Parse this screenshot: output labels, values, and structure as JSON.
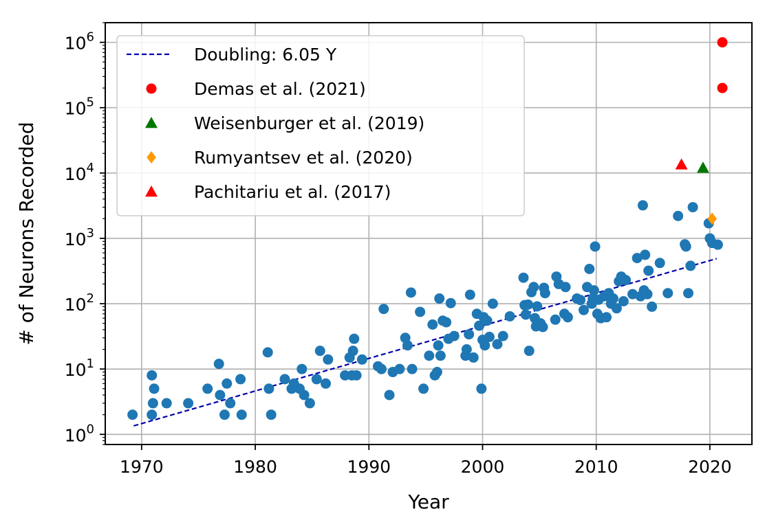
{
  "chart_data": {
    "type": "scatter",
    "title": "",
    "xlabel": "Year",
    "ylabel": "# of Neurons Recorded",
    "xlim": [
      1966.8,
      2023.7
    ],
    "ylim": [
      0.7,
      2000000
    ],
    "yscale": "log",
    "grid": true,
    "legend_position": "top-left",
    "x_ticks": [
      1970,
      1980,
      1990,
      2000,
      2010,
      2020
    ],
    "x_tick_labels": [
      "1970",
      "1980",
      "1990",
      "2000",
      "2010",
      "2020"
    ],
    "y_ticks": [
      1,
      10,
      100,
      1000,
      10000,
      100000,
      1000000
    ],
    "y_tick_labels": [
      {
        "base": "10",
        "exp": "0"
      },
      {
        "base": "10",
        "exp": "1"
      },
      {
        "base": "10",
        "exp": "2"
      },
      {
        "base": "10",
        "exp": "3"
      },
      {
        "base": "10",
        "exp": "4"
      },
      {
        "base": "10",
        "exp": "5"
      },
      {
        "base": "10",
        "exp": "6"
      }
    ],
    "trend": {
      "name": "Doubling: 6.05 Y",
      "color": "#0000aa",
      "style": "dashed",
      "x": [
        1969.3,
        2020.6
      ],
      "y": [
        1.35,
        490
      ]
    },
    "series": [
      {
        "name": "",
        "marker": "circle",
        "color": "#1f77b4",
        "x": [
          1969.2,
          1970.9,
          1971.0,
          1971.1,
          1970.9,
          1972.2,
          1974.1,
          1975.8,
          1976.8,
          1976.9,
          1977.3,
          1977.5,
          1977.8,
          1978.7,
          1978.8,
          1981.1,
          1981.2,
          1981.4,
          1982.6,
          1983.2,
          1983.4,
          1983.9,
          1984.1,
          1984.3,
          1984.8,
          1985.4,
          1985.7,
          1986.2,
          1986.4,
          1987.9,
          1988.3,
          1988.5,
          1988.6,
          1988.7,
          1988.9,
          1989.4,
          1990.8,
          1991.1,
          1991.3,
          1991.8,
          1992.1,
          1992.7,
          1993.2,
          1993.4,
          1993.7,
          1993.8,
          1994.5,
          1994.8,
          1995.3,
          1995.6,
          1995.8,
          1996.0,
          1996.1,
          1996.2,
          1996.3,
          1996.5,
          1996.8,
          1997.0,
          1997.2,
          1997.5,
          1998.5,
          1998.6,
          1998.8,
          1998.9,
          1999.2,
          1999.5,
          1999.7,
          1999.9,
          2000.0,
          2000.1,
          2000.2,
          2000.4,
          2000.6,
          2000.9,
          2001.3,
          2001.8,
          2002.4,
          2003.6,
          2003.7,
          2003.8,
          2004.0,
          2004.1,
          2004.3,
          2004.5,
          2004.6,
          2004.7,
          2004.8,
          2005.1,
          2005.3,
          2005.4,
          2005.5,
          2006.4,
          2006.5,
          2006.7,
          2007.2,
          2007.3,
          2007.5,
          2008.3,
          2008.6,
          2008.9,
          2009.2,
          2009.4,
          2009.6,
          2009.7,
          2009.8,
          2009.9,
          2010.1,
          2010.2,
          2010.4,
          2010.7,
          2010.9,
          2011.1,
          2011.3,
          2011.5,
          2011.8,
          2012.0,
          2012.2,
          2012.4,
          2012.6,
          2013.2,
          2013.6,
          2013.9,
          2014.1,
          2014.2,
          2014.3,
          2014.5,
          2014.6,
          2014.9,
          2015.6,
          2016.3,
          2017.2,
          2017.8,
          2017.9,
          2018.1,
          2018.3,
          2018.5,
          2019.9,
          2020.0,
          2020.2,
          2020.7
        ],
        "y": [
          2,
          2,
          3,
          5,
          8,
          3,
          3,
          5,
          12,
          4,
          2,
          6,
          3,
          7,
          2,
          18,
          5,
          2,
          7,
          5,
          6,
          5,
          10,
          4,
          3,
          7,
          19,
          6,
          14,
          8,
          15,
          8,
          19,
          29,
          8,
          14,
          11,
          10,
          83,
          4,
          9,
          10,
          30,
          23,
          148,
          10,
          75,
          5,
          16,
          48,
          8,
          9,
          23,
          120,
          16,
          55,
          52,
          29,
          102,
          32,
          16,
          20,
          34,
          137,
          15,
          70,
          46,
          5,
          28,
          62,
          23,
          55,
          31,
          100,
          24,
          32,
          64,
          250,
          95,
          68,
          97,
          19,
          150,
          180,
          60,
          45,
          91,
          50,
          44,
          175,
          145,
          57,
          260,
          200,
          70,
          180,
          62,
          120,
          114,
          80,
          180,
          340,
          100,
          120,
          160,
          750,
          70,
          115,
          60,
          130,
          62,
          145,
          100,
          120,
          85,
          220,
          260,
          109,
          230,
          140,
          500,
          130,
          3200,
          160,
          560,
          140,
          320,
          90,
          420,
          145,
          2200,
          810,
          750,
          145,
          380,
          3000,
          1700,
          1000,
          850,
          800
        ]
      },
      {
        "name": "Demas et al. (2021)",
        "marker": "circle",
        "color": "#ff0000",
        "x": [
          2021.1,
          2021.1
        ],
        "y": [
          1000000,
          200000
        ]
      },
      {
        "name": "Weisenburger et al. (2019)",
        "marker": "triangle",
        "color": "#007700",
        "x": [
          2019.4
        ],
        "y": [
          12000
        ]
      },
      {
        "name": "Rumyantsev et al. (2020)",
        "marker": "diamond",
        "color": "#ff9900",
        "x": [
          2020.2
        ],
        "y": [
          2000
        ]
      },
      {
        "name": "Pachitariu et al. (2017)",
        "marker": "triangle",
        "color": "#ff0000",
        "x": [
          2017.5
        ],
        "y": [
          13500
        ]
      }
    ]
  }
}
